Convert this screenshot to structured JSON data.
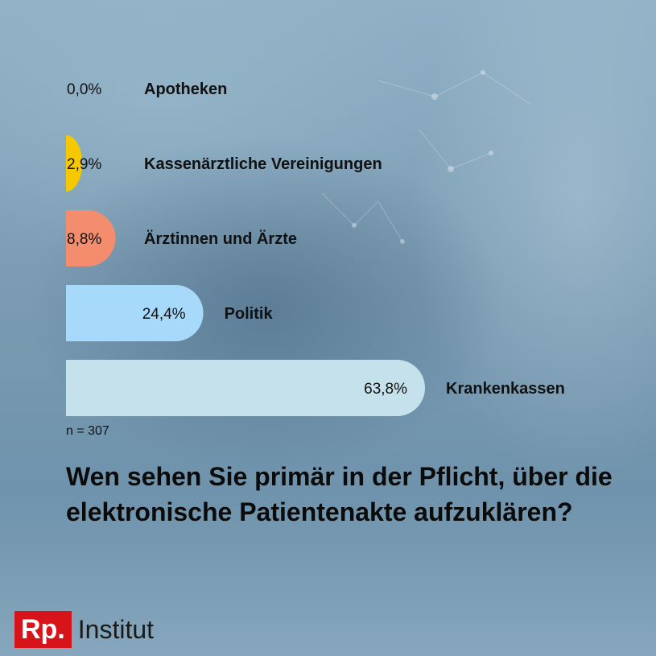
{
  "chart_data": {
    "type": "bar",
    "orientation": "horizontal",
    "categories": [
      "Apotheken",
      "Kassenärztliche Vereinigungen",
      "Ärztinnen und Ärzte",
      "Politik",
      "Krankenkassen"
    ],
    "values": [
      0.0,
      2.9,
      8.8,
      24.4,
      63.8
    ],
    "value_labels": [
      "0,0%",
      "2,9%",
      "8,8%",
      "24,4%",
      "63,8%"
    ],
    "colors": [
      "#f2c200",
      "#f5c800",
      "#f48c6e",
      "#a6d9fa",
      "#c5e1ec"
    ],
    "xlim": [
      0,
      63.8
    ],
    "sample": "n = 307",
    "title": "Wen sehen Sie primär in der Pflicht, über die elektronische Patientenakte aufzuklären?"
  },
  "brand": {
    "mark": "Rp.",
    "name": "Institut",
    "color": "#d8141b"
  }
}
